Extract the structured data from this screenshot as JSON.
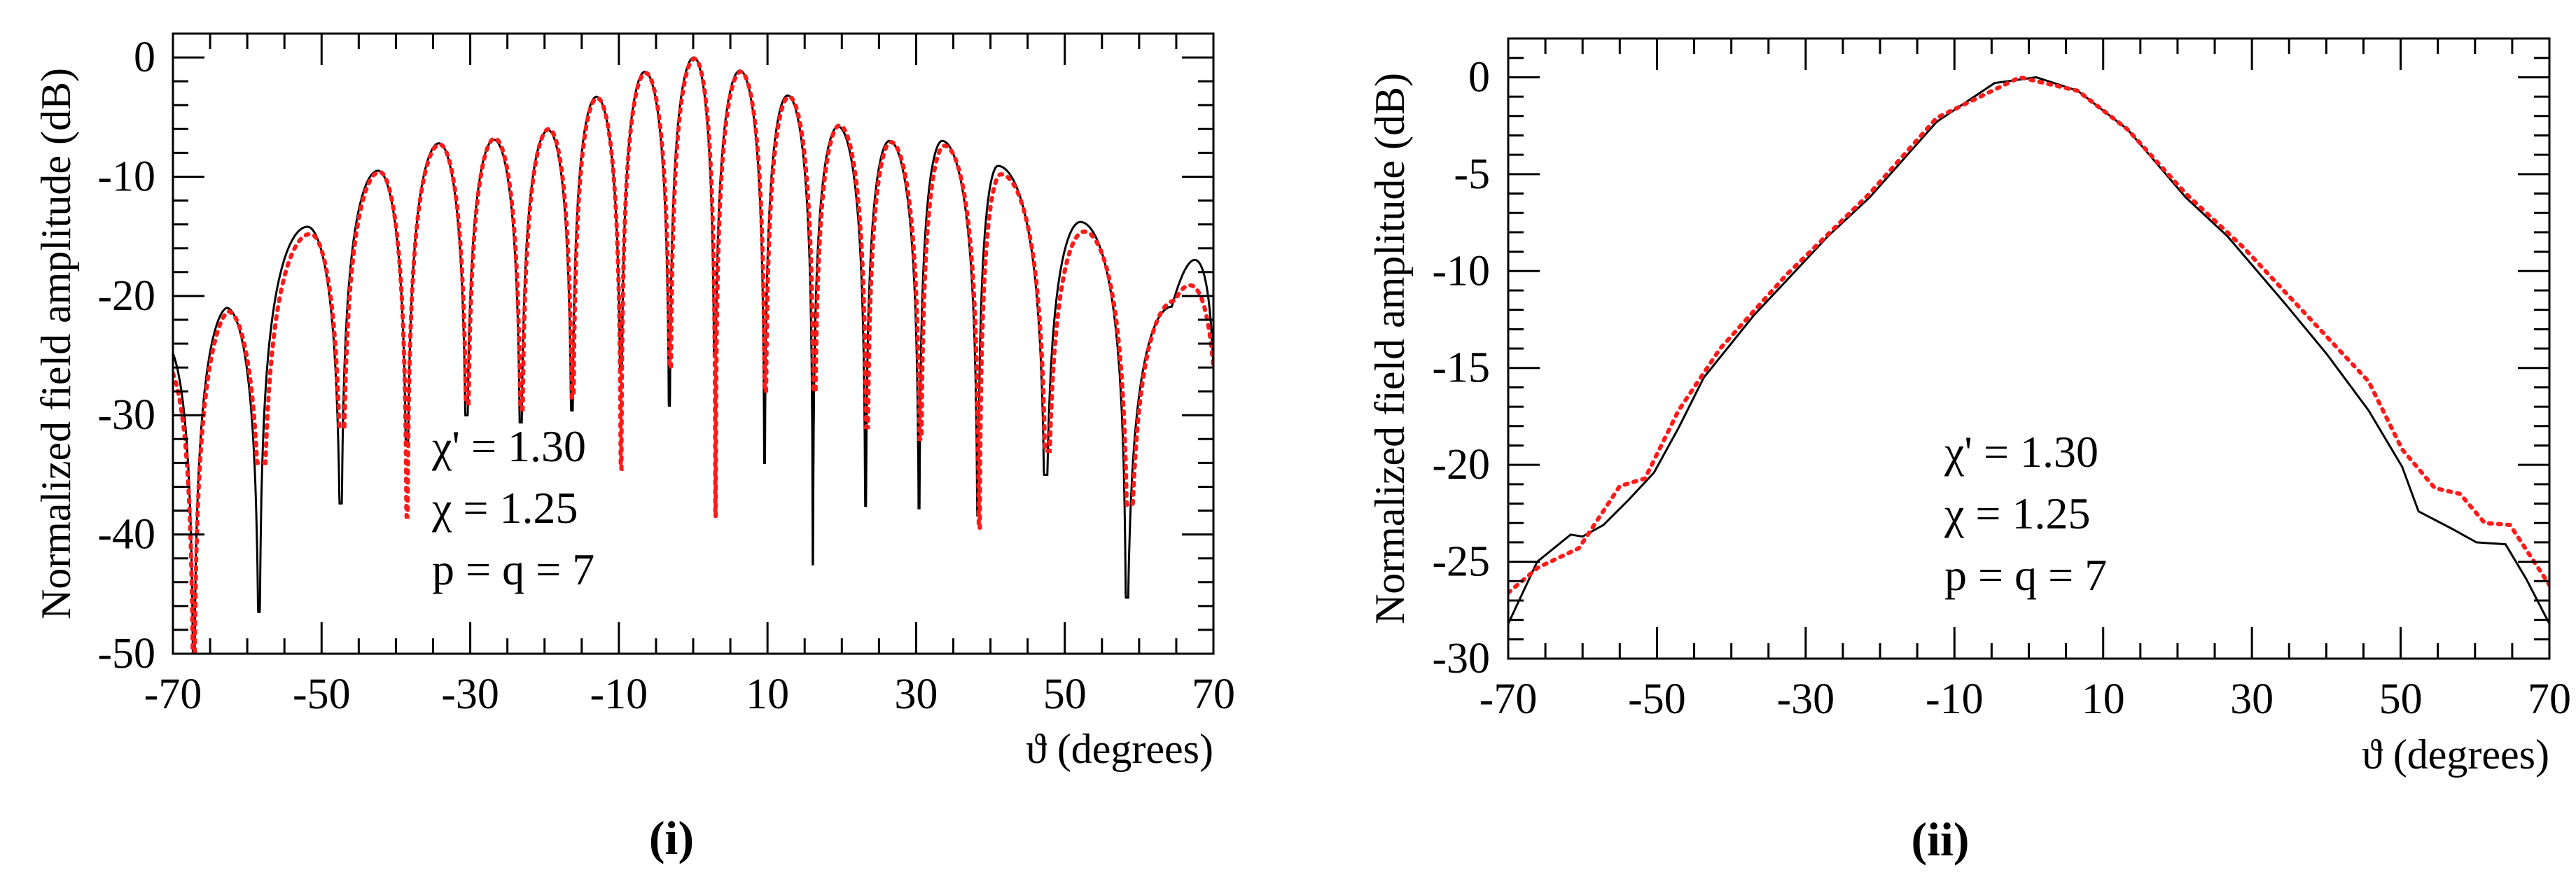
{
  "colors": {
    "simulated": "#000000",
    "measured": "#ff1a1a",
    "axes": "#000000"
  },
  "chart_data": [
    {
      "type": "line",
      "caption": "(i)",
      "xlabel": "ϑ (degrees)",
      "ylabel": "Normalized field amplitude (dB)",
      "xlim": [
        -70,
        70
      ],
      "ylim": [
        -50,
        2
      ],
      "xticks": [
        -70,
        -50,
        -30,
        -10,
        10,
        30,
        50,
        70
      ],
      "yticks": [
        0,
        -10,
        -20,
        -30,
        -40,
        -50
      ],
      "xminor_step": 5,
      "yminor_step": 2,
      "annotations": [
        "χ' = 1.30",
        "χ  = 1.25",
        "p = q = 7"
      ],
      "series": [
        {
          "name": "black-solid",
          "style": "solid",
          "edges": [
            [
              -70,
              -24.8
            ],
            [
              70,
              -26.0
            ]
          ],
          "peaks": [
            [
              -62.8,
              -21
            ],
            [
              -51.9,
              -14.2
            ],
            [
              -42.4,
              -9.5
            ],
            [
              -34.2,
              -7.2
            ],
            [
              -26.8,
              -6.9
            ],
            [
              -19.5,
              -6.1
            ],
            [
              -13.0,
              -3.3
            ],
            [
              -6.5,
              -1.2
            ],
            [
              0.1,
              0
            ],
            [
              6.3,
              -1.1
            ],
            [
              12.7,
              -3.2
            ],
            [
              19.5,
              -5.8
            ],
            [
              26.4,
              -7.0
            ],
            [
              33.5,
              -7.0
            ],
            [
              41.0,
              -9.1
            ],
            [
              52.1,
              -13.8
            ],
            [
              64.4,
              -20.9
            ]
          ],
          "nulls": [
            [
              -58.4,
              -46.5
            ],
            [
              -47.4,
              -37.4
            ],
            [
              -38.5,
              -32.4
            ],
            [
              -30.5,
              -30
            ],
            [
              -23.2,
              -30.6
            ],
            [
              -16.3,
              -29.6
            ],
            [
              -9.7,
              -26
            ],
            [
              -3.2,
              -29.2
            ],
            [
              2.9,
              -25
            ],
            [
              9.6,
              -34
            ],
            [
              16.1,
              -42.5
            ],
            [
              23.2,
              -37.6
            ],
            [
              30.4,
              -37.8
            ],
            [
              38.3,
              -38.4
            ],
            [
              47.4,
              -35
            ],
            [
              58.3,
              -45.3
            ]
          ]
        },
        {
          "name": "red-dotted",
          "style": "dotted",
          "edges": [
            [
              -70,
              -26.5
            ],
            [
              70,
              -26.0
            ]
          ],
          "peaks": [
            [
              -62.6,
              -21.3
            ],
            [
              -51.5,
              -14.8
            ],
            [
              -42.2,
              -9.6
            ],
            [
              -34.1,
              -7.3
            ],
            [
              -26.7,
              -6.8
            ],
            [
              -19.4,
              -6.0
            ],
            [
              -12.9,
              -3.4
            ],
            [
              -6.4,
              -1.3
            ],
            [
              0.2,
              -0.1
            ],
            [
              6.4,
              -1.2
            ],
            [
              12.9,
              -3.3
            ],
            [
              19.7,
              -5.7
            ],
            [
              26.6,
              -7.1
            ],
            [
              33.8,
              -7.4
            ],
            [
              41.4,
              -9.8
            ],
            [
              52.6,
              -14.6
            ],
            [
              64.8,
              -20.4
            ]
          ],
          "nulls": [
            [
              -58.0,
              -34
            ],
            [
              -47.2,
              -31
            ],
            [
              -38.5,
              -38.5
            ],
            [
              -30.4,
              -29
            ],
            [
              -23.1,
              -29.5
            ],
            [
              -16.2,
              -28.5
            ],
            [
              -9.7,
              -34.5
            ],
            [
              -3.1,
              -26
            ],
            [
              3.0,
              -38.5
            ],
            [
              9.7,
              -28
            ],
            [
              16.3,
              -28
            ],
            [
              23.4,
              -31
            ],
            [
              30.6,
              -32
            ],
            [
              38.5,
              -39.5
            ],
            [
              47.6,
              -33
            ],
            [
              58.6,
              -37.5
            ]
          ]
        }
      ]
    },
    {
      "type": "line",
      "caption": "(ii)",
      "xlabel": "ϑ (degrees)",
      "ylabel": "Normalized field amplitude (dB)",
      "xlim": [
        -70,
        70
      ],
      "ylim": [
        -30,
        2
      ],
      "xticks": [
        -70,
        -50,
        -30,
        -10,
        10,
        30,
        50,
        70
      ],
      "yticks": [
        0,
        -5,
        -10,
        -15,
        -20,
        -25,
        -30
      ],
      "xminor_step": 5,
      "yminor_step": 1,
      "annotations": [
        "χ' = 1.30",
        "χ  = 1.25",
        "p = q = 7"
      ],
      "series": [
        {
          "name": "black-solid",
          "style": "solid",
          "x": [
            -70,
            -66.1,
            -61.6,
            -60,
            -57.2,
            -53.8,
            -50.4,
            -47.1,
            -43.7,
            -37,
            -32.6,
            -27,
            -21.4,
            -12.4,
            -4.6,
            1,
            6.6,
            13.3,
            21.1,
            26.7,
            34.5,
            40.1,
            45.7,
            50.2,
            52.4,
            56.9,
            60.2,
            64.1,
            66.9,
            70
          ],
          "y": [
            -28.2,
            -25,
            -23.6,
            -23.7,
            -23.1,
            -21.8,
            -20.4,
            -18.1,
            -15.5,
            -12.3,
            -10.5,
            -8.2,
            -6.2,
            -2.3,
            -0.3,
            0,
            -0.7,
            -2.7,
            -6.2,
            -8.2,
            -11.7,
            -14.3,
            -17.2,
            -20.1,
            -22.4,
            -23.3,
            -24,
            -24.1,
            -25.9,
            -28.2
          ]
        },
        {
          "name": "red-dotted",
          "style": "dotted",
          "x": [
            -70,
            -66,
            -60.5,
            -55,
            -51.6,
            -47.1,
            -41.5,
            -32.6,
            -21.4,
            -12.4,
            -1.2,
            6.6,
            13.3,
            21.1,
            28.9,
            40.1,
            45.7,
            50.2,
            54.6,
            58,
            61.3,
            64.7,
            70
          ],
          "y": [
            -26.6,
            -25.3,
            -24.3,
            -21.1,
            -20.7,
            -17.2,
            -14,
            -10.2,
            -6,
            -2.1,
            0,
            -0.7,
            -2.7,
            -6,
            -8.8,
            -13.4,
            -15.7,
            -19.2,
            -21.2,
            -21.5,
            -23,
            -23.1,
            -26.2
          ]
        }
      ]
    }
  ]
}
